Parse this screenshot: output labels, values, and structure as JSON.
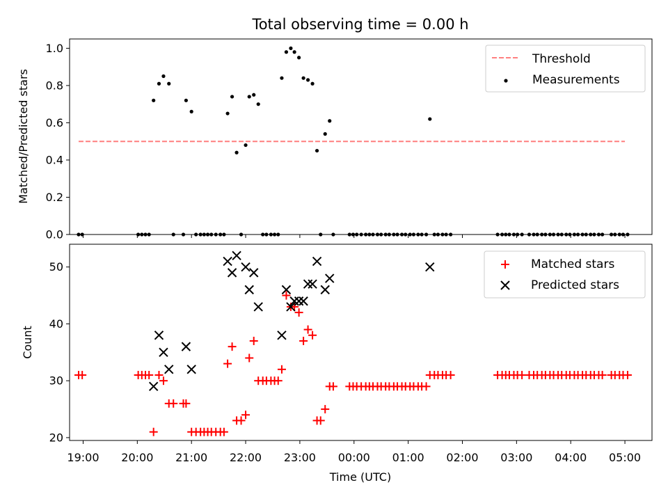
{
  "figure": {
    "title": "Total observing time = 0.00 h"
  },
  "chart_data": [
    {
      "type": "scatter",
      "panel": "top",
      "title": "Total observing time = 0.00 h",
      "xlabel": "",
      "ylabel": "Matched/Predicted stars",
      "xlim": [
        "18:45",
        "05:30"
      ],
      "ylim": [
        0.0,
        1.05
      ],
      "yticks": [
        0.0,
        0.2,
        0.4,
        0.6,
        0.8,
        1.0
      ],
      "ytick_labels": [
        "0.0",
        "0.2",
        "0.4",
        "0.6",
        "0.8",
        "1.0"
      ],
      "grid": false,
      "legend": {
        "placement": "top-right",
        "entries": [
          "Threshold",
          "Measurements"
        ]
      },
      "threshold": {
        "name": "Threshold",
        "value": 0.5,
        "x_start": "18:55",
        "x_end": "05:00",
        "color": "#ff7f7f",
        "style": "dashed"
      },
      "measurements": {
        "name": "Measurements",
        "color": "#000000",
        "points": [
          [
            "18:55",
            0
          ],
          [
            "18:59",
            0
          ],
          [
            "20:01",
            0
          ],
          [
            "20:05",
            0
          ],
          [
            "20:09",
            0
          ],
          [
            "20:13",
            0
          ],
          [
            "20:18",
            0.72
          ],
          [
            "20:24",
            0.81
          ],
          [
            "20:29",
            0.85
          ],
          [
            "20:35",
            0.81
          ],
          [
            "20:40",
            0
          ],
          [
            "20:51",
            0
          ],
          [
            "20:54",
            0.72
          ],
          [
            "21:00",
            0.66
          ],
          [
            "21:05",
            0
          ],
          [
            "21:10",
            0
          ],
          [
            "21:14",
            0
          ],
          [
            "21:18",
            0
          ],
          [
            "21:22",
            0
          ],
          [
            "21:27",
            0
          ],
          [
            "21:32",
            0
          ],
          [
            "21:36",
            0
          ],
          [
            "21:40",
            0.65
          ],
          [
            "21:45",
            0.74
          ],
          [
            "21:50",
            0.44
          ],
          [
            "21:55",
            0
          ],
          [
            "22:00",
            0.48
          ],
          [
            "22:04",
            0.74
          ],
          [
            "22:09",
            0.75
          ],
          [
            "22:14",
            0.7
          ],
          [
            "22:19",
            0
          ],
          [
            "22:23",
            0
          ],
          [
            "22:28",
            0
          ],
          [
            "22:32",
            0
          ],
          [
            "22:36",
            0
          ],
          [
            "22:40",
            0.84
          ],
          [
            "22:45",
            0.98
          ],
          [
            "22:50",
            1.0
          ],
          [
            "22:54",
            0.98
          ],
          [
            "22:59",
            0.95
          ],
          [
            "23:04",
            0.84
          ],
          [
            "23:09",
            0.83
          ],
          [
            "23:14",
            0.81
          ],
          [
            "23:19",
            0.45
          ],
          [
            "23:23",
            0
          ],
          [
            "23:28",
            0.54
          ],
          [
            "23:33",
            0.61
          ],
          [
            "23:37",
            0
          ],
          [
            "23:55",
            0
          ],
          [
            "23:59",
            0
          ],
          [
            "00:03",
            0
          ],
          [
            "00:08",
            0
          ],
          [
            "00:13",
            0
          ],
          [
            "00:17",
            0
          ],
          [
            "00:21",
            0
          ],
          [
            "00:26",
            0
          ],
          [
            "00:30",
            0
          ],
          [
            "00:35",
            0
          ],
          [
            "00:39",
            0
          ],
          [
            "00:44",
            0
          ],
          [
            "00:48",
            0
          ],
          [
            "00:53",
            0
          ],
          [
            "00:57",
            0
          ],
          [
            "01:02",
            0
          ],
          [
            "01:06",
            0
          ],
          [
            "01:11",
            0
          ],
          [
            "01:15",
            0
          ],
          [
            "01:20",
            0
          ],
          [
            "01:24",
            0.62
          ],
          [
            "01:29",
            0
          ],
          [
            "01:33",
            0
          ],
          [
            "01:38",
            0
          ],
          [
            "01:42",
            0
          ],
          [
            "01:47",
            0
          ],
          [
            "02:39",
            0
          ],
          [
            "02:44",
            0
          ],
          [
            "02:48",
            0
          ],
          [
            "02:52",
            0
          ],
          [
            "02:57",
            0
          ],
          [
            "03:01",
            0
          ],
          [
            "03:06",
            0
          ],
          [
            "03:14",
            0
          ],
          [
            "03:19",
            0
          ],
          [
            "03:23",
            0
          ],
          [
            "03:28",
            0
          ],
          [
            "03:32",
            0
          ],
          [
            "03:37",
            0
          ],
          [
            "03:41",
            0
          ],
          [
            "03:46",
            0
          ],
          [
            "03:50",
            0
          ],
          [
            "03:55",
            0
          ],
          [
            "03:59",
            0
          ],
          [
            "04:04",
            0
          ],
          [
            "04:08",
            0
          ],
          [
            "04:13",
            0
          ],
          [
            "04:17",
            0
          ],
          [
            "04:22",
            0
          ],
          [
            "04:26",
            0
          ],
          [
            "04:31",
            0
          ],
          [
            "04:35",
            0
          ],
          [
            "04:45",
            0
          ],
          [
            "04:49",
            0
          ],
          [
            "04:54",
            0
          ],
          [
            "04:58",
            0
          ],
          [
            "05:03",
            0
          ]
        ]
      }
    },
    {
      "type": "scatter",
      "panel": "bottom",
      "xlabel": "Time (UTC)",
      "ylabel": "Count",
      "xlim": [
        "18:45",
        "05:30"
      ],
      "ylim": [
        19.5,
        54
      ],
      "yticks": [
        20,
        30,
        40,
        50
      ],
      "ytick_labels": [
        "20",
        "30",
        "40",
        "50"
      ],
      "xticks": [
        "19:00",
        "20:00",
        "21:00",
        "22:00",
        "23:00",
        "00:00",
        "01:00",
        "02:00",
        "03:00",
        "04:00",
        "05:00"
      ],
      "grid": false,
      "legend": {
        "placement": "top-right",
        "entries": [
          "Matched stars",
          "Predicted stars"
        ]
      },
      "series": [
        {
          "name": "Matched stars",
          "marker": "plus",
          "color": "#ff0000",
          "points": [
            [
              "18:55",
              31
            ],
            [
              "18:59",
              31
            ],
            [
              "20:01",
              31
            ],
            [
              "20:05",
              31
            ],
            [
              "20:09",
              31
            ],
            [
              "20:13",
              31
            ],
            [
              "20:18",
              21
            ],
            [
              "20:24",
              31
            ],
            [
              "20:29",
              30
            ],
            [
              "20:35",
              26
            ],
            [
              "20:40",
              26
            ],
            [
              "20:51",
              26
            ],
            [
              "20:54",
              26
            ],
            [
              "21:00",
              21
            ],
            [
              "21:05",
              21
            ],
            [
              "21:10",
              21
            ],
            [
              "21:14",
              21
            ],
            [
              "21:18",
              21
            ],
            [
              "21:22",
              21
            ],
            [
              "21:27",
              21
            ],
            [
              "21:32",
              21
            ],
            [
              "21:36",
              21
            ],
            [
              "21:40",
              33
            ],
            [
              "21:45",
              36
            ],
            [
              "21:50",
              23
            ],
            [
              "21:55",
              23
            ],
            [
              "22:00",
              24
            ],
            [
              "22:04",
              34
            ],
            [
              "22:09",
              37
            ],
            [
              "22:14",
              30
            ],
            [
              "22:19",
              30
            ],
            [
              "22:23",
              30
            ],
            [
              "22:28",
              30
            ],
            [
              "22:32",
              30
            ],
            [
              "22:36",
              30
            ],
            [
              "22:40",
              32
            ],
            [
              "22:45",
              45
            ],
            [
              "22:50",
              43
            ],
            [
              "22:54",
              43
            ],
            [
              "22:59",
              42
            ],
            [
              "23:04",
              37
            ],
            [
              "23:09",
              39
            ],
            [
              "23:14",
              38
            ],
            [
              "23:19",
              23
            ],
            [
              "23:23",
              23
            ],
            [
              "23:28",
              25
            ],
            [
              "23:33",
              29
            ],
            [
              "23:37",
              29
            ],
            [
              "23:55",
              29
            ],
            [
              "23:59",
              29
            ],
            [
              "00:03",
              29
            ],
            [
              "00:08",
              29
            ],
            [
              "00:13",
              29
            ],
            [
              "00:17",
              29
            ],
            [
              "00:21",
              29
            ],
            [
              "00:26",
              29
            ],
            [
              "00:30",
              29
            ],
            [
              "00:35",
              29
            ],
            [
              "00:39",
              29
            ],
            [
              "00:44",
              29
            ],
            [
              "00:48",
              29
            ],
            [
              "00:53",
              29
            ],
            [
              "00:57",
              29
            ],
            [
              "01:02",
              29
            ],
            [
              "01:06",
              29
            ],
            [
              "01:11",
              29
            ],
            [
              "01:15",
              29
            ],
            [
              "01:20",
              29
            ],
            [
              "01:24",
              31
            ],
            [
              "01:29",
              31
            ],
            [
              "01:33",
              31
            ],
            [
              "01:38",
              31
            ],
            [
              "01:42",
              31
            ],
            [
              "01:47",
              31
            ],
            [
              "02:39",
              31
            ],
            [
              "02:44",
              31
            ],
            [
              "02:48",
              31
            ],
            [
              "02:52",
              31
            ],
            [
              "02:57",
              31
            ],
            [
              "03:01",
              31
            ],
            [
              "03:06",
              31
            ],
            [
              "03:14",
              31
            ],
            [
              "03:19",
              31
            ],
            [
              "03:23",
              31
            ],
            [
              "03:28",
              31
            ],
            [
              "03:32",
              31
            ],
            [
              "03:37",
              31
            ],
            [
              "03:41",
              31
            ],
            [
              "03:46",
              31
            ],
            [
              "03:50",
              31
            ],
            [
              "03:55",
              31
            ],
            [
              "03:59",
              31
            ],
            [
              "04:04",
              31
            ],
            [
              "04:08",
              31
            ],
            [
              "04:13",
              31
            ],
            [
              "04:17",
              31
            ],
            [
              "04:22",
              31
            ],
            [
              "04:26",
              31
            ],
            [
              "04:31",
              31
            ],
            [
              "04:35",
              31
            ],
            [
              "04:45",
              31
            ],
            [
              "04:49",
              31
            ],
            [
              "04:54",
              31
            ],
            [
              "04:58",
              31
            ],
            [
              "05:03",
              31
            ]
          ]
        },
        {
          "name": "Predicted stars",
          "marker": "x",
          "color": "#000000",
          "points": [
            [
              "20:18",
              29
            ],
            [
              "20:24",
              38
            ],
            [
              "20:29",
              35
            ],
            [
              "20:35",
              32
            ],
            [
              "20:54",
              36
            ],
            [
              "21:00",
              32
            ],
            [
              "21:40",
              51
            ],
            [
              "21:45",
              49
            ],
            [
              "21:50",
              52
            ],
            [
              "22:00",
              50
            ],
            [
              "22:04",
              46
            ],
            [
              "22:09",
              49
            ],
            [
              "22:14",
              43
            ],
            [
              "22:40",
              38
            ],
            [
              "22:45",
              46
            ],
            [
              "22:50",
              43
            ],
            [
              "22:54",
              44
            ],
            [
              "22:59",
              44
            ],
            [
              "23:04",
              44
            ],
            [
              "23:09",
              47
            ],
            [
              "23:14",
              47
            ],
            [
              "23:19",
              51
            ],
            [
              "23:28",
              46
            ],
            [
              "23:33",
              48
            ],
            [
              "01:24",
              50
            ]
          ]
        }
      ]
    }
  ]
}
